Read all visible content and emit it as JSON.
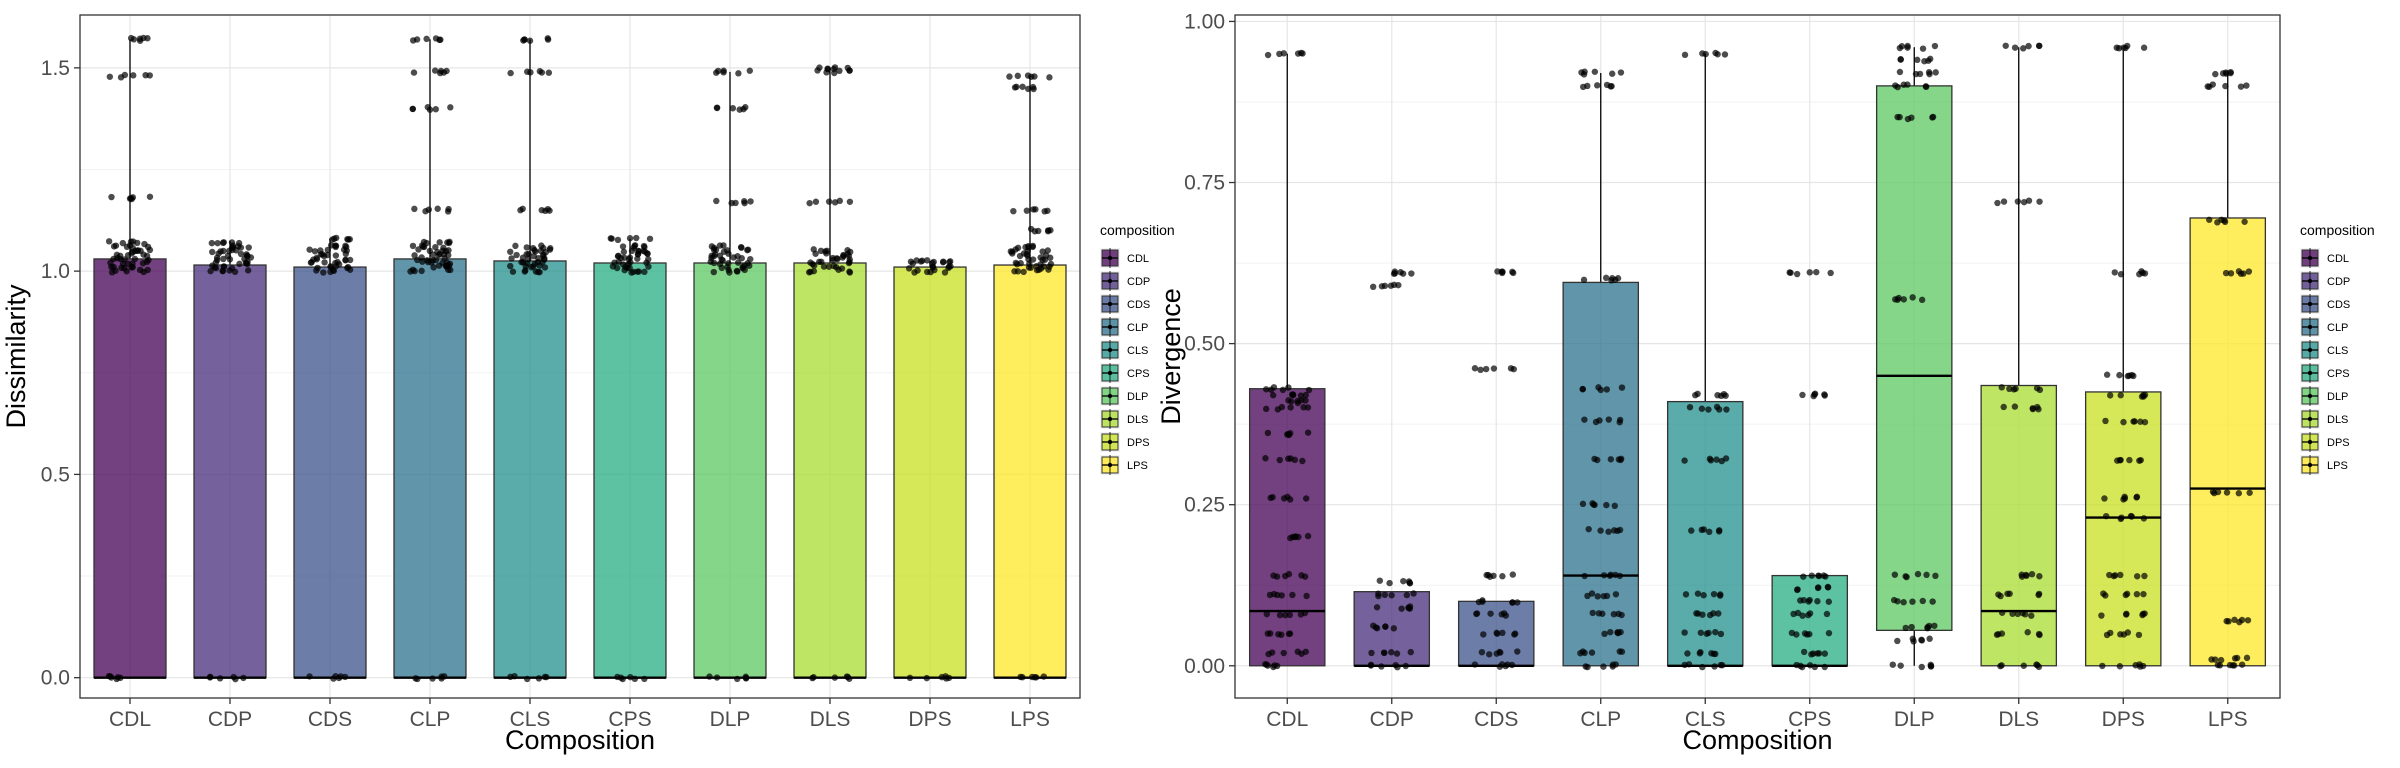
{
  "chart_data": [
    {
      "type": "box",
      "xlabel": "Composition",
      "ylabel": "Dissimilarity",
      "ylim": [
        -0.05,
        1.63
      ],
      "yticks": [
        "0.0",
        "0.5",
        "1.0",
        "1.5"
      ],
      "ytick_values": [
        0,
        0.5,
        1.0,
        1.5
      ],
      "grid": true,
      "legend_title": "composition",
      "legend_position": "right",
      "categories": [
        "CDL",
        "CDP",
        "CDS",
        "CLP",
        "CLS",
        "CPS",
        "DLP",
        "DLS",
        "DPS",
        "LPS"
      ],
      "colors": [
        "#440154",
        "#472D7B",
        "#3B528B",
        "#2C728E",
        "#21908C",
        "#27AD81",
        "#5DC863",
        "#AADC32",
        "#C8E020",
        "#FDE725"
      ],
      "boxes": [
        {
          "q1": 0,
          "median": 0,
          "q3": 1.03,
          "whisker_low": 0,
          "whisker_high": 1.57
        },
        {
          "q1": 0,
          "median": 0,
          "q3": 1.015,
          "whisker_low": 0,
          "whisker_high": 1.075
        },
        {
          "q1": 0,
          "median": 0,
          "q3": 1.01,
          "whisker_low": 0,
          "whisker_high": 1.08
        },
        {
          "q1": 0,
          "median": 0,
          "q3": 1.03,
          "whisker_low": 0,
          "whisker_high": 1.57
        },
        {
          "q1": 0,
          "median": 0,
          "q3": 1.025,
          "whisker_low": 0,
          "whisker_high": 1.57
        },
        {
          "q1": 0,
          "median": 0,
          "q3": 1.02,
          "whisker_low": 0,
          "whisker_high": 1.08
        },
        {
          "q1": 0,
          "median": 0,
          "q3": 1.02,
          "whisker_low": 0,
          "whisker_high": 1.49
        },
        {
          "q1": 0,
          "median": 0,
          "q3": 1.02,
          "whisker_low": 0,
          "whisker_high": 1.5
        },
        {
          "q1": 0,
          "median": 0,
          "q3": 1.01,
          "whisker_low": 0,
          "whisker_high": 1.025
        },
        {
          "q1": 0,
          "median": 0,
          "q3": 1.015,
          "whisker_low": 0,
          "whisker_high": 1.48
        }
      ],
      "points": [
        [
          0,
          1.0,
          1.01,
          1.02,
          1.03,
          1.04,
          1.05,
          1.06,
          1.07,
          1.18,
          1.48,
          1.57
        ],
        [
          0,
          1.0,
          1.01,
          1.02,
          1.03,
          1.04,
          1.05,
          1.06,
          1.07
        ],
        [
          0,
          1.0,
          1.01,
          1.02,
          1.03,
          1.04,
          1.05,
          1.06,
          1.08
        ],
        [
          0,
          1.0,
          1.01,
          1.02,
          1.03,
          1.04,
          1.05,
          1.06,
          1.07,
          1.15,
          1.4,
          1.49,
          1.57
        ],
        [
          0,
          1.0,
          1.01,
          1.02,
          1.03,
          1.04,
          1.05,
          1.06,
          1.15,
          1.49,
          1.57
        ],
        [
          0,
          1.0,
          1.01,
          1.02,
          1.03,
          1.04,
          1.05,
          1.06,
          1.08
        ],
        [
          0,
          1.0,
          1.01,
          1.02,
          1.03,
          1.04,
          1.05,
          1.06,
          1.17,
          1.4,
          1.49
        ],
        [
          0,
          1.0,
          1.01,
          1.02,
          1.03,
          1.04,
          1.05,
          1.17,
          1.49,
          1.5
        ],
        [
          0,
          1.0,
          1.01,
          1.02,
          1.025
        ],
        [
          0,
          1.0,
          1.01,
          1.02,
          1.03,
          1.04,
          1.05,
          1.06,
          1.1,
          1.15,
          1.45,
          1.48
        ]
      ]
    },
    {
      "type": "box",
      "xlabel": "Composition",
      "ylabel": "Divergence",
      "ylim": [
        -0.05,
        1.01
      ],
      "yticks": [
        "0.00",
        "0.25",
        "0.50",
        "0.75",
        "1.00"
      ],
      "ytick_values": [
        0,
        0.25,
        0.5,
        0.75,
        1.0
      ],
      "grid": true,
      "legend_title": "composition",
      "legend_position": "right",
      "categories": [
        "CDL",
        "CDP",
        "CDS",
        "CLP",
        "CLS",
        "CPS",
        "DLP",
        "DLS",
        "DPS",
        "LPS"
      ],
      "colors": [
        "#440154",
        "#472D7B",
        "#3B528B",
        "#2C728E",
        "#21908C",
        "#27AD81",
        "#5DC863",
        "#AADC32",
        "#C8E020",
        "#FDE725"
      ],
      "boxes": [
        {
          "q1": 0,
          "median": 0.085,
          "q3": 0.43,
          "whisker_low": 0,
          "whisker_high": 0.95
        },
        {
          "q1": 0,
          "median": 0,
          "q3": 0.115,
          "whisker_low": 0,
          "whisker_high": 0.115
        },
        {
          "q1": 0,
          "median": 0,
          "q3": 0.1,
          "whisker_low": 0,
          "whisker_high": 0.1
        },
        {
          "q1": 0,
          "median": 0.14,
          "q3": 0.595,
          "whisker_low": 0,
          "whisker_high": 0.92
        },
        {
          "q1": 0,
          "median": 0,
          "q3": 0.41,
          "whisker_low": 0,
          "whisker_high": 0.95
        },
        {
          "q1": 0,
          "median": 0,
          "q3": 0.14,
          "whisker_low": 0,
          "whisker_high": 0.14
        },
        {
          "q1": 0.055,
          "median": 0.45,
          "q3": 0.9,
          "whisker_low": 0,
          "whisker_high": 0.96
        },
        {
          "q1": 0,
          "median": 0.085,
          "q3": 0.435,
          "whisker_low": 0,
          "whisker_high": 0.96
        },
        {
          "q1": 0,
          "median": 0.23,
          "q3": 0.425,
          "whisker_low": 0,
          "whisker_high": 0.955
        },
        {
          "q1": 0,
          "median": 0.275,
          "q3": 0.695,
          "whisker_low": 0,
          "whisker_high": 0.92
        }
      ],
      "points": [
        [
          0,
          0.02,
          0.05,
          0.08,
          0.11,
          0.14,
          0.2,
          0.26,
          0.32,
          0.36,
          0.4,
          0.41,
          0.42,
          0.43,
          0.95
        ],
        [
          0,
          0.02,
          0.06,
          0.09,
          0.11,
          0.13,
          0.59,
          0.61
        ],
        [
          0,
          0.02,
          0.05,
          0.08,
          0.1,
          0.14,
          0.46,
          0.61
        ],
        [
          0,
          0.02,
          0.05,
          0.08,
          0.11,
          0.14,
          0.21,
          0.25,
          0.32,
          0.38,
          0.43,
          0.6,
          0.9,
          0.92
        ],
        [
          0,
          0.02,
          0.05,
          0.08,
          0.11,
          0.21,
          0.32,
          0.4,
          0.42,
          0.95
        ],
        [
          0,
          0.02,
          0.05,
          0.08,
          0.1,
          0.12,
          0.14,
          0.42,
          0.61
        ],
        [
          0,
          0.04,
          0.06,
          0.1,
          0.14,
          0.57,
          0.85,
          0.9,
          0.92,
          0.94,
          0.96
        ],
        [
          0,
          0.05,
          0.08,
          0.11,
          0.14,
          0.4,
          0.43,
          0.72,
          0.96
        ],
        [
          0,
          0.05,
          0.08,
          0.11,
          0.14,
          0.23,
          0.26,
          0.32,
          0.38,
          0.42,
          0.45,
          0.61,
          0.96
        ],
        [
          0,
          0.01,
          0.07,
          0.27,
          0.61,
          0.69,
          0.9,
          0.92
        ]
      ]
    }
  ]
}
